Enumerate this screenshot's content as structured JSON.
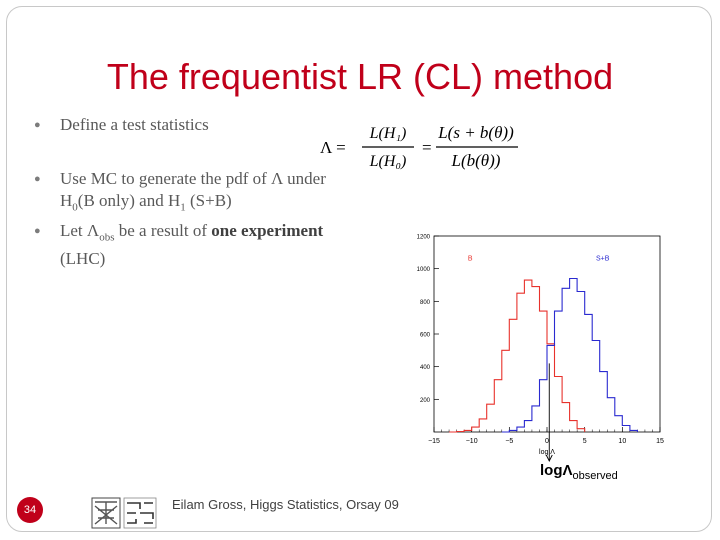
{
  "slide": {
    "title": "The frequentist LR (CL) method",
    "bullets": [
      {
        "lines": [
          "Define a test statistics"
        ]
      },
      {
        "lines": [
          "Use MC to generate the pdf of Λ under",
          "H0(B only) and H1 (S+B)"
        ]
      },
      {
        "lines": [
          "Let Λobs be a result of one experiment",
          "(LHC)"
        ]
      }
    ],
    "bullet3_prefix": "Let Λ",
    "bullet3_sub": "obs",
    "bullet3_mid": " be a result of ",
    "bullet3_bold": "one experiment",
    "bullet3_line2": "(LHC)",
    "bullet2_line1": "Use MC to generate the pdf of Λ under",
    "bullet2_line2_a": "H",
    "bullet2_line2_sub0": "0",
    "bullet2_line2_b": "(B only) and H",
    "bullet2_line2_sub1": "1",
    "bullet2_line2_c": " (S+B)",
    "formula": {
      "lhs": "Λ =",
      "num1": "L(H₁)",
      "den1": "L(H₀)",
      "eq": "=",
      "num2": "L(s + b(θ))",
      "den2": "L(b(θ))"
    },
    "observed_label_main": "logΛ",
    "observed_label_sub": "observed",
    "page_number": "34",
    "footer": "Eilam Gross, Higgs Statistics, Orsay 09"
  },
  "colors": {
    "title": "#c0001a",
    "curve_b": "#e8322c",
    "curve_sb": "#2a2ad0",
    "page_badge": "#c0001a"
  },
  "chart_data": {
    "type": "line",
    "xlabel": "log Λ",
    "ylabel": "",
    "xlim": [
      -15,
      15
    ],
    "ylim": [
      0,
      1200
    ],
    "xticks": [
      -15,
      -10,
      -5,
      0,
      5,
      10,
      15
    ],
    "yticks": [
      200,
      400,
      600,
      800,
      1000,
      1200
    ],
    "observed_x": 0.3,
    "series": [
      {
        "name": "B",
        "label_x": -10.5,
        "label_y": 1050,
        "x": [
          -13,
          -12,
          -11,
          -10,
          -9,
          -8,
          -7,
          -6,
          -5,
          -4,
          -3,
          -2,
          -1,
          0,
          1,
          2,
          3,
          4,
          5
        ],
        "y": [
          0,
          3,
          10,
          30,
          80,
          170,
          320,
          500,
          690,
          850,
          930,
          890,
          740,
          540,
          340,
          180,
          70,
          20,
          0
        ]
      },
      {
        "name": "S+B",
        "label_x": 6.5,
        "label_y": 1050,
        "x": [
          -6,
          -5,
          -4,
          -3,
          -2,
          -1,
          0,
          1,
          2,
          3,
          4,
          5,
          6,
          7,
          8,
          9,
          10,
          11,
          12
        ],
        "y": [
          0,
          10,
          30,
          70,
          160,
          320,
          530,
          740,
          880,
          940,
          860,
          720,
          560,
          370,
          210,
          100,
          40,
          10,
          0
        ]
      }
    ]
  }
}
